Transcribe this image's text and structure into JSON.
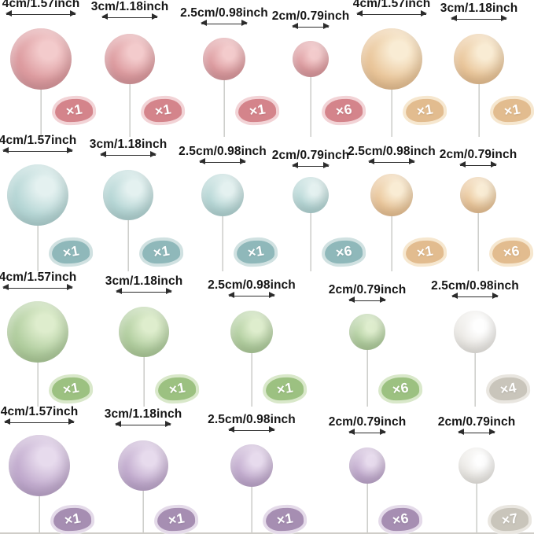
{
  "page": {
    "background": "#ffffff",
    "bottom_edge_color": "#cfcdc8"
  },
  "colors": {
    "pink": {
      "ball": "#dd9ca0",
      "highlight": "#f3cbcc",
      "shade": "#c98890",
      "badge": "#d4848b",
      "badge_halo": "#f2d3d6"
    },
    "gold": {
      "ball": "#eac79c",
      "highlight": "#f9ecd4",
      "shade": "#d7a977",
      "badge": "#e2bc8f",
      "badge_halo": "#f6e7cf"
    },
    "blue": {
      "ball": "#b7d7d6",
      "highlight": "#e4f1f0",
      "shade": "#9dc3c3",
      "badge": "#8fb8ba",
      "badge_halo": "#d0e1e1"
    },
    "green": {
      "ball": "#b3cfa1",
      "highlight": "#deedcd",
      "shade": "#9bba83",
      "badge": "#9cc181",
      "badge_halo": "#d9e8ca"
    },
    "purple": {
      "ball": "#c3adcf",
      "highlight": "#e7dbed",
      "shade": "#a98fbb",
      "badge": "#a68eb2",
      "badge_halo": "#e4dae9"
    },
    "white": {
      "ball": "#eceae6",
      "highlight": "#fefefe",
      "shade": "#d8d5cf",
      "badge": "#c9c5bb",
      "badge_halo": "#e9e6e0"
    }
  },
  "rows": [
    {
      "items": [
        {
          "color": "pink",
          "size": "4",
          "label": "4cm/1.57inch",
          "qty": "×1"
        },
        {
          "color": "pink",
          "size": "3",
          "label": "3cm/1.18inch",
          "qty": "×1"
        },
        {
          "color": "pink",
          "size": "2.5",
          "label": "2.5cm/0.98inch",
          "qty": "×1"
        },
        {
          "color": "pink",
          "size": "2",
          "label": "2cm/0.79inch",
          "qty": "×6"
        },
        {
          "color": "gold",
          "size": "4",
          "label": "4cm/1.57inch",
          "qty": "×1"
        },
        {
          "color": "gold",
          "size": "3",
          "label": "3cm/1.18inch",
          "qty": "×1"
        }
      ]
    },
    {
      "items": [
        {
          "color": "blue",
          "size": "4",
          "label": "4cm/1.57inch",
          "qty": "×1"
        },
        {
          "color": "blue",
          "size": "3",
          "label": "3cm/1.18inch",
          "qty": "×1"
        },
        {
          "color": "blue",
          "size": "2.5",
          "label": "2.5cm/0.98inch",
          "qty": "×1"
        },
        {
          "color": "blue",
          "size": "2",
          "label": "2cm/0.79inch",
          "qty": "×6"
        },
        {
          "color": "gold",
          "size": "2.5",
          "label": "2.5cm/0.98inch",
          "qty": "×1"
        },
        {
          "color": "gold",
          "size": "2",
          "label": "2cm/0.79inch",
          "qty": "×6"
        }
      ]
    },
    {
      "items": [
        {
          "color": "green",
          "size": "4",
          "label": "4cm/1.57inch",
          "qty": "×1"
        },
        {
          "color": "green",
          "size": "3",
          "label": "3cm/1.18inch",
          "qty": "×1"
        },
        {
          "color": "green",
          "size": "2.5",
          "label": "2.5cm/0.98inch",
          "qty": "×1"
        },
        {
          "color": "green",
          "size": "2",
          "label": "2cm/0.79inch",
          "qty": "×6"
        },
        {
          "color": "white",
          "size": "2.5",
          "label": "2.5cm/0.98inch",
          "qty": "×4"
        }
      ]
    },
    {
      "items": [
        {
          "color": "purple",
          "size": "4",
          "label": "4cm/1.57inch",
          "qty": "×1"
        },
        {
          "color": "purple",
          "size": "3",
          "label": "3cm/1.18inch",
          "qty": "×1"
        },
        {
          "color": "purple",
          "size": "2.5",
          "label": "2.5cm/0.98inch",
          "qty": "×1"
        },
        {
          "color": "purple",
          "size": "2",
          "label": "2cm/0.79inch",
          "qty": "×6"
        },
        {
          "color": "white",
          "size": "2",
          "label": "2cm/0.79inch",
          "qty": "×7"
        }
      ]
    }
  ]
}
